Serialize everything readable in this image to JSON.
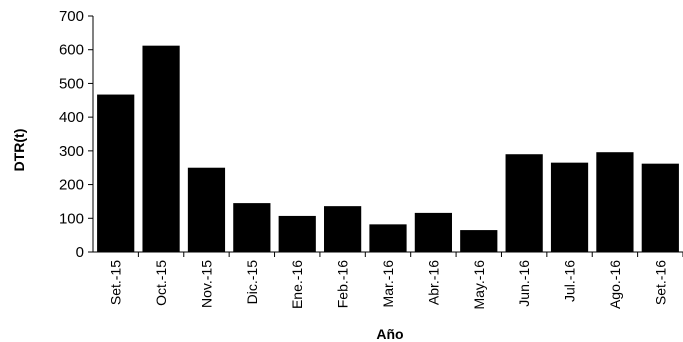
{
  "chart_data": {
    "type": "bar",
    "title": "",
    "xlabel": "Año",
    "ylabel": "DTR(t)",
    "ylim": [
      0,
      700
    ],
    "yticks": [
      0,
      100,
      200,
      300,
      400,
      500,
      600,
      700
    ],
    "grid": false,
    "categories": [
      "Set.-15",
      "Oct.-15",
      "Nov.-15",
      "Dic.-15",
      "Ene.-16",
      "Feb.-16",
      "Mar.-16",
      "Abr.-16",
      "May.-16",
      "Jun.-16",
      "Jul.-16",
      "Ago.-16",
      "Set.-16"
    ],
    "values": [
      467,
      612,
      250,
      145,
      107,
      136,
      82,
      116,
      65,
      290,
      265,
      296,
      262
    ],
    "bar_color": "#000000"
  }
}
